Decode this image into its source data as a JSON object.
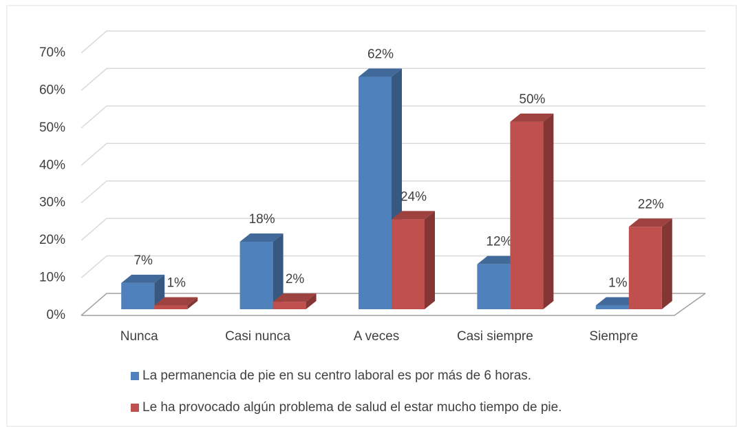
{
  "chart_data": {
    "type": "bar3d",
    "categories": [
      "Nunca",
      "Casi nunca",
      "A veces",
      "Casi siempre",
      "Siempre"
    ],
    "series": [
      {
        "name": "La permanencia de pie en su centro laboral es por más de 6 horas.",
        "color": "#4f81bd",
        "values": [
          7,
          18,
          62,
          12,
          1
        ],
        "value_labels": [
          "7%",
          "18%",
          "62%",
          "12%",
          "1%"
        ]
      },
      {
        "name": "Le ha provocado algún problema de salud el estar mucho tiempo de pie.",
        "color": "#c0504d",
        "values": [
          1,
          2,
          24,
          50,
          22
        ],
        "value_labels": [
          "1%",
          "2%",
          "24%",
          "50%",
          "22%"
        ]
      }
    ],
    "ylim": [
      0,
      70
    ],
    "yticks": [
      {
        "value": 0,
        "label": "0%"
      },
      {
        "value": 10,
        "label": "10%"
      },
      {
        "value": 20,
        "label": "20%"
      },
      {
        "value": 30,
        "label": "30%"
      },
      {
        "value": 40,
        "label": "40%"
      },
      {
        "value": 50,
        "label": "50%"
      },
      {
        "value": 60,
        "label": "60%"
      },
      {
        "value": 70,
        "label": "70%"
      }
    ],
    "grid": true
  }
}
